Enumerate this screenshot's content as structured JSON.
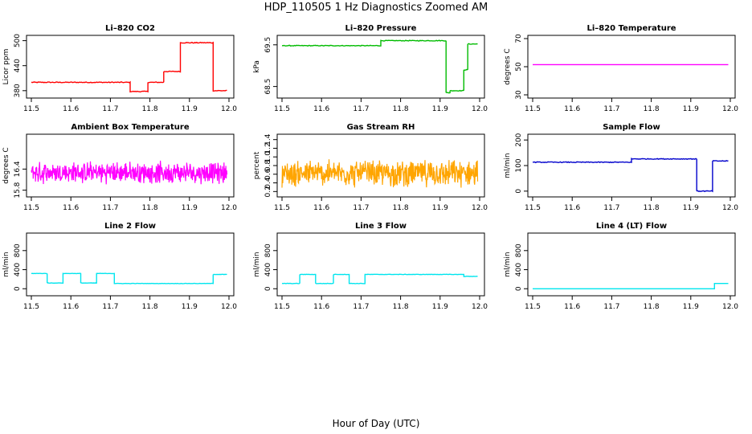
{
  "figure": {
    "title": "HDP_110505  1 Hz Diagnostics Zoomed AM",
    "xlabel": "Hour of Day (UTC)"
  },
  "chart_data": [
    {
      "type": "line",
      "title": "Li–820 CO2",
      "ylabel": "Licor ppm",
      "color": "#ff0000",
      "xlim": [
        11.5,
        12.0
      ],
      "ylim": [
        370,
        505
      ],
      "xticks": [
        11.5,
        11.6,
        11.7,
        11.8,
        11.9,
        12.0
      ],
      "xtick_labels": [
        "11.5",
        "11.6",
        "11.7",
        "11.8",
        "11.9",
        "12.0"
      ],
      "yticks": [
        380,
        440,
        500
      ],
      "ytick_labels": [
        "380",
        "440",
        "500"
      ],
      "style": "steps",
      "noise": 1.0,
      "x": [
        11.5,
        11.75,
        11.75,
        11.795,
        11.795,
        11.835,
        11.835,
        11.877,
        11.877,
        11.96,
        11.96,
        11.995
      ],
      "y": [
        400,
        400,
        378,
        378,
        400,
        400,
        426,
        426,
        495,
        495,
        380,
        380
      ]
    },
    {
      "type": "line",
      "title": "Li–820 Pressure",
      "ylabel": "kPa",
      "color": "#00bb00",
      "xlim": [
        11.5,
        12.0
      ],
      "ylim": [
        68.3,
        69.65
      ],
      "xticks": [
        11.5,
        11.6,
        11.7,
        11.8,
        11.9,
        12.0
      ],
      "xtick_labels": [
        "11.5",
        "11.6",
        "11.7",
        "11.8",
        "11.9",
        "12.0"
      ],
      "yticks": [
        68.5,
        69.5
      ],
      "ytick_labels": [
        "68.5",
        "69.5"
      ],
      "style": "steps",
      "noise": 0.008,
      "x": [
        11.5,
        11.75,
        11.75,
        11.915,
        11.915,
        11.925,
        11.925,
        11.96,
        11.96,
        11.97,
        11.97,
        11.995
      ],
      "y": [
        69.48,
        69.48,
        69.6,
        69.6,
        68.35,
        68.35,
        68.4,
        68.4,
        68.9,
        68.9,
        69.52,
        69.52
      ]
    },
    {
      "type": "line",
      "title": "Li–820 Temperature",
      "ylabel": "degrees C",
      "color": "#ff00ff",
      "xlim": [
        11.5,
        12.0
      ],
      "ylim": [
        30,
        70
      ],
      "xticks": [
        11.5,
        11.6,
        11.7,
        11.8,
        11.9,
        12.0
      ],
      "xtick_labels": [
        "11.5",
        "11.6",
        "11.7",
        "11.8",
        "11.9",
        "12.0"
      ],
      "yticks": [
        30,
        50,
        70
      ],
      "ytick_labels": [
        "30",
        "50",
        "70"
      ],
      "style": "steps",
      "noise": 0.0,
      "x": [
        11.5,
        11.995
      ],
      "y": [
        51.5,
        51.5
      ]
    },
    {
      "type": "line",
      "title": "Ambient Box Temperature",
      "ylabel": "degrees C",
      "color": "#ff00ff",
      "xlim": [
        11.5,
        12.0
      ],
      "ylim": [
        15.7,
        17.3
      ],
      "xticks": [
        11.5,
        11.6,
        11.7,
        11.8,
        11.9,
        12.0
      ],
      "xtick_labels": [
        "11.5",
        "11.6",
        "11.7",
        "11.8",
        "11.9",
        "12.0"
      ],
      "yticks": [
        15.8,
        16.4
      ],
      "ytick_labels": [
        "15.8",
        "16.4"
      ],
      "style": "noise",
      "noise": 0.35,
      "x": [
        11.5,
        11.995
      ],
      "y": [
        16.3,
        16.3
      ]
    },
    {
      "type": "line",
      "title": "Gas Stream RH",
      "ylabel": "percent",
      "color": "#ffa500",
      "xlim": [
        11.5,
        12.0
      ],
      "ylim": [
        0.15,
        1.45
      ],
      "xticks": [
        11.5,
        11.6,
        11.7,
        11.8,
        11.9,
        12.0
      ],
      "xtick_labels": [
        "11.5",
        "11.6",
        "11.7",
        "11.8",
        "11.9",
        "12.0"
      ],
      "yticks": [
        0.2,
        0.4,
        0.6,
        0.8,
        1.0,
        1.2,
        1.4
      ],
      "ytick_labels": [
        "0.2",
        "0.4",
        "0.6",
        "0.8",
        "1.0",
        "1.2",
        "1.4"
      ],
      "style": "noise",
      "noise": 0.35,
      "x": [
        11.5,
        11.995
      ],
      "y": [
        0.62,
        0.62
      ]
    },
    {
      "type": "line",
      "title": "Sample Flow",
      "ylabel": "ml/min",
      "color": "#0000cc",
      "xlim": [
        11.5,
        12.0
      ],
      "ylim": [
        -10,
        210
      ],
      "xticks": [
        11.5,
        11.6,
        11.7,
        11.8,
        11.9,
        12.0
      ],
      "xtick_labels": [
        "11.5",
        "11.6",
        "11.7",
        "11.8",
        "11.9",
        "12.0"
      ],
      "yticks": [
        0,
        100,
        200
      ],
      "ytick_labels": [
        "0",
        "100",
        "200"
      ],
      "style": "steps",
      "noise": 1.5,
      "x": [
        11.5,
        11.75,
        11.75,
        11.915,
        11.915,
        11.955,
        11.955,
        11.995
      ],
      "y": [
        113,
        113,
        126,
        126,
        0,
        0,
        118,
        118
      ]
    },
    {
      "type": "line",
      "title": "Line 2 Flow",
      "ylabel": "ml/min",
      "color": "#00e5ee",
      "xlim": [
        11.5,
        12.0
      ],
      "ylim": [
        -80,
        1100
      ],
      "xticks": [
        11.5,
        11.6,
        11.7,
        11.8,
        11.9,
        12.0
      ],
      "xtick_labels": [
        "11.5",
        "11.6",
        "11.7",
        "11.8",
        "11.9",
        "12.0"
      ],
      "yticks": [
        0,
        400,
        800
      ],
      "ytick_labels": [
        "0",
        "400",
        "800"
      ],
      "style": "steps",
      "noise": 3,
      "x": [
        11.5,
        11.54,
        11.54,
        11.58,
        11.58,
        11.625,
        11.625,
        11.665,
        11.665,
        11.71,
        11.71,
        11.96,
        11.96,
        11.995
      ],
      "y": [
        320,
        320,
        120,
        120,
        320,
        320,
        120,
        120,
        320,
        320,
        110,
        110,
        300,
        300
      ]
    },
    {
      "type": "line",
      "title": "Line 3 Flow",
      "ylabel": "ml/min",
      "color": "#00e5ee",
      "xlim": [
        11.5,
        12.0
      ],
      "ylim": [
        -80,
        1100
      ],
      "xticks": [
        11.5,
        11.6,
        11.7,
        11.8,
        11.9,
        12.0
      ],
      "xtick_labels": [
        "11.5",
        "11.6",
        "11.7",
        "11.8",
        "11.9",
        "12.0"
      ],
      "yticks": [
        0,
        400,
        800
      ],
      "ytick_labels": [
        "0",
        "400",
        "800"
      ],
      "style": "steps",
      "noise": 4,
      "x": [
        11.5,
        11.545,
        11.545,
        11.585,
        11.585,
        11.63,
        11.63,
        11.67,
        11.67,
        11.71,
        11.71,
        11.96,
        11.96,
        11.995
      ],
      "y": [
        110,
        110,
        300,
        300,
        110,
        110,
        300,
        300,
        110,
        110,
        300,
        300,
        260,
        260
      ]
    },
    {
      "type": "line",
      "title": "Line 4 (LT) Flow",
      "ylabel": "ml/min",
      "color": "#00e5ee",
      "xlim": [
        11.5,
        12.0
      ],
      "ylim": [
        -80,
        1100
      ],
      "xticks": [
        11.5,
        11.6,
        11.7,
        11.8,
        11.9,
        12.0
      ],
      "xtick_labels": [
        "11.5",
        "11.6",
        "11.7",
        "11.8",
        "11.9",
        "12.0"
      ],
      "yticks": [
        0,
        400,
        800
      ],
      "ytick_labels": [
        "0",
        "400",
        "800"
      ],
      "style": "steps",
      "noise": 0,
      "x": [
        11.5,
        11.96,
        11.96,
        11.995
      ],
      "y": [
        0,
        0,
        110,
        110
      ]
    }
  ]
}
